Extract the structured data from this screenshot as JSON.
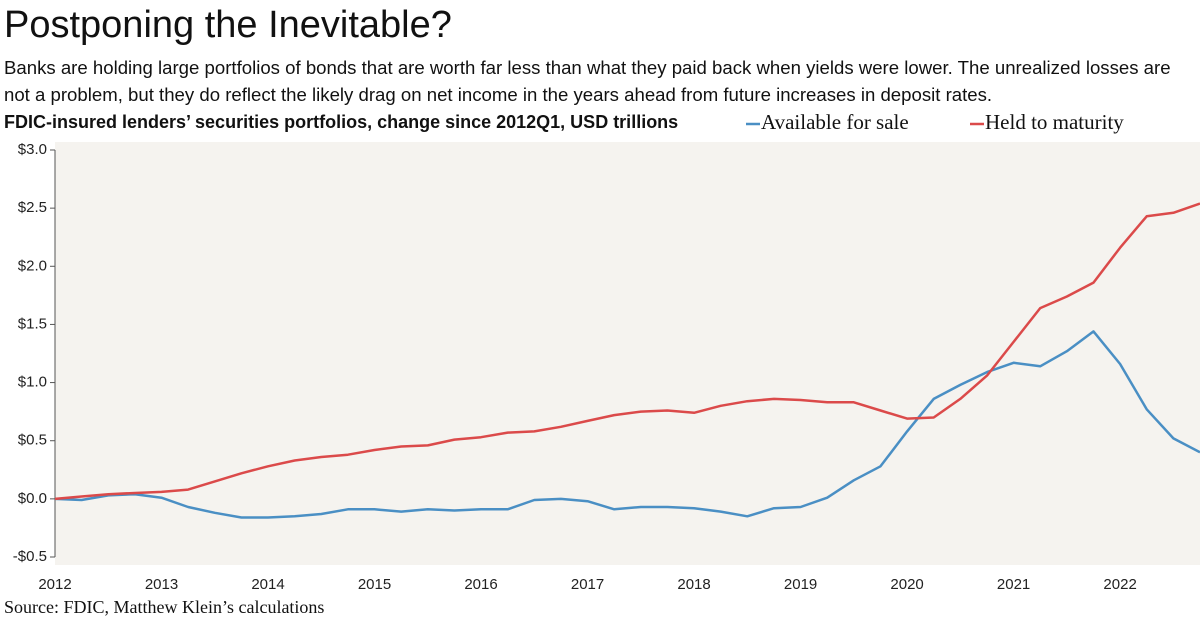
{
  "chart_data": {
    "type": "line",
    "title": "Postponing the Inevitable?",
    "description": "Banks are holding large portfolios of bonds that are worth far less than what they paid back when yields were lower. The unrealized losses are not a problem, but they do reflect the likely drag on net income in the years ahead from future increases in deposit rates.",
    "subtitle": "FDIC-insured lenders’ securities portfolios, change since 2012Q1, USD trillions",
    "source": "Source: FDIC, Matthew Klein’s calculations",
    "x": [
      2012,
      2012.25,
      2012.5,
      2012.75,
      2013,
      2013.25,
      2013.5,
      2013.75,
      2014,
      2014.25,
      2014.5,
      2014.75,
      2015,
      2015.25,
      2015.5,
      2015.75,
      2016,
      2016.25,
      2016.5,
      2016.75,
      2017,
      2017.25,
      2017.5,
      2017.75,
      2018,
      2018.25,
      2018.5,
      2018.75,
      2019,
      2019.25,
      2019.5,
      2019.75,
      2020,
      2020.25,
      2020.5,
      2020.75,
      2021,
      2021.25,
      2021.5,
      2021.75,
      2022,
      2022.25,
      2022.5,
      2022.75
    ],
    "series": [
      {
        "name": "Available for sale",
        "color": "#4a8fc4",
        "values": [
          0,
          -0.01,
          0.03,
          0.04,
          0.01,
          -0.07,
          -0.12,
          -0.16,
          -0.16,
          -0.15,
          -0.13,
          -0.09,
          -0.09,
          -0.11,
          -0.09,
          -0.1,
          -0.09,
          -0.09,
          -0.01,
          0.0,
          -0.02,
          -0.09,
          -0.07,
          -0.07,
          -0.08,
          -0.11,
          -0.15,
          -0.08,
          -0.07,
          0.01,
          0.16,
          0.28,
          0.58,
          0.86,
          0.98,
          1.09,
          1.17,
          1.14,
          1.27,
          1.44,
          1.16,
          0.77,
          0.52,
          0.4
        ]
      },
      {
        "name": "Held to maturity",
        "color": "#db4a4a",
        "values": [
          0,
          0.02,
          0.04,
          0.05,
          0.06,
          0.08,
          0.15,
          0.22,
          0.28,
          0.33,
          0.36,
          0.38,
          0.42,
          0.45,
          0.46,
          0.51,
          0.53,
          0.57,
          0.58,
          0.62,
          0.67,
          0.72,
          0.75,
          0.76,
          0.74,
          0.8,
          0.84,
          0.86,
          0.85,
          0.83,
          0.83,
          0.76,
          0.69,
          0.7,
          0.86,
          1.06,
          1.35,
          1.64,
          1.74,
          1.86,
          2.16,
          2.43,
          2.46,
          2.54
        ]
      }
    ],
    "xlim": [
      2012,
      2022.75
    ],
    "xticks": [
      2012,
      2013,
      2014,
      2015,
      2016,
      2017,
      2018,
      2019,
      2020,
      2021,
      2022
    ],
    "ylim": [
      -0.5,
      3.0
    ],
    "yticks": [
      {
        "value": -0.5,
        "label": "-$0.5"
      },
      {
        "value": 0,
        "label": "$0.0"
      },
      {
        "value": 0.5,
        "label": "$0.5"
      },
      {
        "value": 1.0,
        "label": "$1.0"
      },
      {
        "value": 1.5,
        "label": "$1.5"
      },
      {
        "value": 2.0,
        "label": "$2.0"
      },
      {
        "value": 2.5,
        "label": "$2.5"
      },
      {
        "value": 3.0,
        "label": "$3.0"
      }
    ],
    "background": "#f5f3ef"
  }
}
